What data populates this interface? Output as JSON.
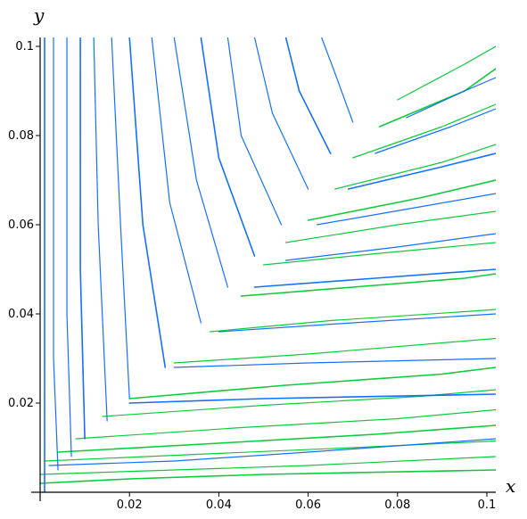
{
  "chart_data": {
    "type": "line",
    "title": "",
    "xlabel": "x",
    "ylabel": "y",
    "xlim": [
      0,
      0.102
    ],
    "ylim": [
      0,
      0.102
    ],
    "x_ticks": [
      0.02,
      0.04,
      0.06,
      0.08,
      0.1
    ],
    "x_tick_labels": [
      "0.02",
      "0.04",
      "0.06",
      "0.08",
      "0.1"
    ],
    "y_ticks": [
      0.02,
      0.04,
      0.06,
      0.08,
      0.1
    ],
    "y_tick_labels": [
      "0.02",
      "0.04",
      "0.06",
      "0.08",
      "0.1"
    ],
    "grid": false,
    "legend": "none",
    "series": [
      {
        "color": "#00c832",
        "description_rows": [
          [
            [
              0.0,
              0.002
            ],
            [
              0.02,
              0.003
            ],
            [
              0.05,
              0.004
            ],
            [
              0.102,
              0.005
            ]
          ],
          [
            [
              0.0,
              0.004
            ],
            [
              0.03,
              0.005
            ],
            [
              0.06,
              0.006
            ],
            [
              0.102,
              0.008
            ]
          ],
          [
            [
              0.001,
              0.007
            ],
            [
              0.035,
              0.0085
            ],
            [
              0.07,
              0.01
            ],
            [
              0.102,
              0.0115
            ]
          ],
          [
            [
              0.004,
              0.009
            ],
            [
              0.04,
              0.011
            ],
            [
              0.075,
              0.013
            ],
            [
              0.102,
              0.015
            ]
          ],
          [
            [
              0.008,
              0.012
            ],
            [
              0.045,
              0.0145
            ],
            [
              0.08,
              0.0165
            ],
            [
              0.102,
              0.0185
            ]
          ],
          [
            [
              0.014,
              0.017
            ],
            [
              0.05,
              0.0195
            ],
            [
              0.085,
              0.0215
            ],
            [
              0.102,
              0.023
            ]
          ],
          [
            [
              0.02,
              0.021
            ],
            [
              0.055,
              0.024
            ],
            [
              0.09,
              0.0265
            ],
            [
              0.102,
              0.028
            ]
          ],
          [
            [
              0.03,
              0.029
            ],
            [
              0.06,
              0.031
            ],
            [
              0.09,
              0.0335
            ],
            [
              0.102,
              0.0345
            ]
          ],
          [
            [
              0.038,
              0.036
            ],
            [
              0.065,
              0.0385
            ],
            [
              0.095,
              0.0405
            ],
            [
              0.102,
              0.041
            ]
          ],
          [
            [
              0.045,
              0.044
            ],
            [
              0.07,
              0.046
            ],
            [
              0.095,
              0.048
            ],
            [
              0.102,
              0.049
            ]
          ],
          [
            [
              0.05,
              0.051
            ],
            [
              0.075,
              0.0535
            ],
            [
              0.102,
              0.056
            ]
          ],
          [
            [
              0.055,
              0.056
            ],
            [
              0.08,
              0.06
            ],
            [
              0.102,
              0.063
            ]
          ],
          [
            [
              0.06,
              0.061
            ],
            [
              0.085,
              0.066
            ],
            [
              0.102,
              0.07
            ]
          ],
          [
            [
              0.066,
              0.068
            ],
            [
              0.09,
              0.074
            ],
            [
              0.102,
              0.078
            ]
          ],
          [
            [
              0.07,
              0.075
            ],
            [
              0.09,
              0.082
            ],
            [
              0.102,
              0.087
            ]
          ],
          [
            [
              0.076,
              0.082
            ],
            [
              0.095,
              0.09
            ],
            [
              0.102,
              0.095
            ]
          ],
          [
            [
              0.08,
              0.088
            ],
            [
              0.095,
              0.096
            ],
            [
              0.102,
              0.1
            ]
          ]
        ]
      },
      {
        "color": "#0064ff",
        "description_rows": [
          [
            [
              0.001,
              0.102
            ],
            [
              0.001,
              0.04
            ],
            [
              0.001,
              0.0
            ]
          ],
          [
            [
              0.003,
              0.102
            ],
            [
              0.003,
              0.03
            ],
            [
              0.004,
              0.005
            ]
          ],
          [
            [
              0.006,
              0.102
            ],
            [
              0.006,
              0.04
            ],
            [
              0.007,
              0.008
            ]
          ],
          [
            [
              0.009,
              0.102
            ],
            [
              0.009,
              0.05
            ],
            [
              0.01,
              0.012
            ]
          ],
          [
            [
              0.012,
              0.102
            ],
            [
              0.013,
              0.06
            ],
            [
              0.015,
              0.016
            ]
          ],
          [
            [
              0.016,
              0.102
            ],
            [
              0.018,
              0.06
            ],
            [
              0.02,
              0.021
            ]
          ],
          [
            [
              0.02,
              0.102
            ],
            [
              0.023,
              0.06
            ],
            [
              0.028,
              0.028
            ]
          ],
          [
            [
              0.025,
              0.102
            ],
            [
              0.029,
              0.065
            ],
            [
              0.036,
              0.038
            ]
          ],
          [
            [
              0.03,
              0.102
            ],
            [
              0.035,
              0.07
            ],
            [
              0.042,
              0.046
            ]
          ],
          [
            [
              0.036,
              0.102
            ],
            [
              0.04,
              0.075
            ],
            [
              0.048,
              0.053
            ]
          ],
          [
            [
              0.042,
              0.102
            ],
            [
              0.045,
              0.08
            ],
            [
              0.054,
              0.06
            ]
          ],
          [
            [
              0.048,
              0.102
            ],
            [
              0.052,
              0.085
            ],
            [
              0.06,
              0.068
            ]
          ],
          [
            [
              0.055,
              0.102
            ],
            [
              0.058,
              0.09
            ],
            [
              0.065,
              0.076
            ]
          ],
          [
            [
              0.063,
              0.102
            ],
            [
              0.066,
              0.094
            ],
            [
              0.07,
              0.083
            ]
          ],
          [
            [
              0.002,
              0.006
            ],
            [
              0.03,
              0.007
            ],
            [
              0.06,
              0.009
            ],
            [
              0.102,
              0.012
            ]
          ],
          [
            [
              0.02,
              0.02
            ],
            [
              0.05,
              0.021
            ],
            [
              0.102,
              0.022
            ]
          ],
          [
            [
              0.03,
              0.028
            ],
            [
              0.06,
              0.029
            ],
            [
              0.102,
              0.03
            ]
          ],
          [
            [
              0.04,
              0.036
            ],
            [
              0.07,
              0.038
            ],
            [
              0.102,
              0.04
            ]
          ],
          [
            [
              0.048,
              0.046
            ],
            [
              0.075,
              0.048
            ],
            [
              0.102,
              0.05
            ]
          ],
          [
            [
              0.055,
              0.052
            ],
            [
              0.08,
              0.055
            ],
            [
              0.102,
              0.058
            ]
          ],
          [
            [
              0.062,
              0.06
            ],
            [
              0.085,
              0.064
            ],
            [
              0.102,
              0.067
            ]
          ],
          [
            [
              0.069,
              0.068
            ],
            [
              0.09,
              0.073
            ],
            [
              0.102,
              0.076
            ]
          ],
          [
            [
              0.075,
              0.076
            ],
            [
              0.092,
              0.082
            ],
            [
              0.102,
              0.086
            ]
          ],
          [
            [
              0.082,
              0.084
            ],
            [
              0.095,
              0.09
            ],
            [
              0.102,
              0.093
            ]
          ]
        ]
      }
    ]
  }
}
